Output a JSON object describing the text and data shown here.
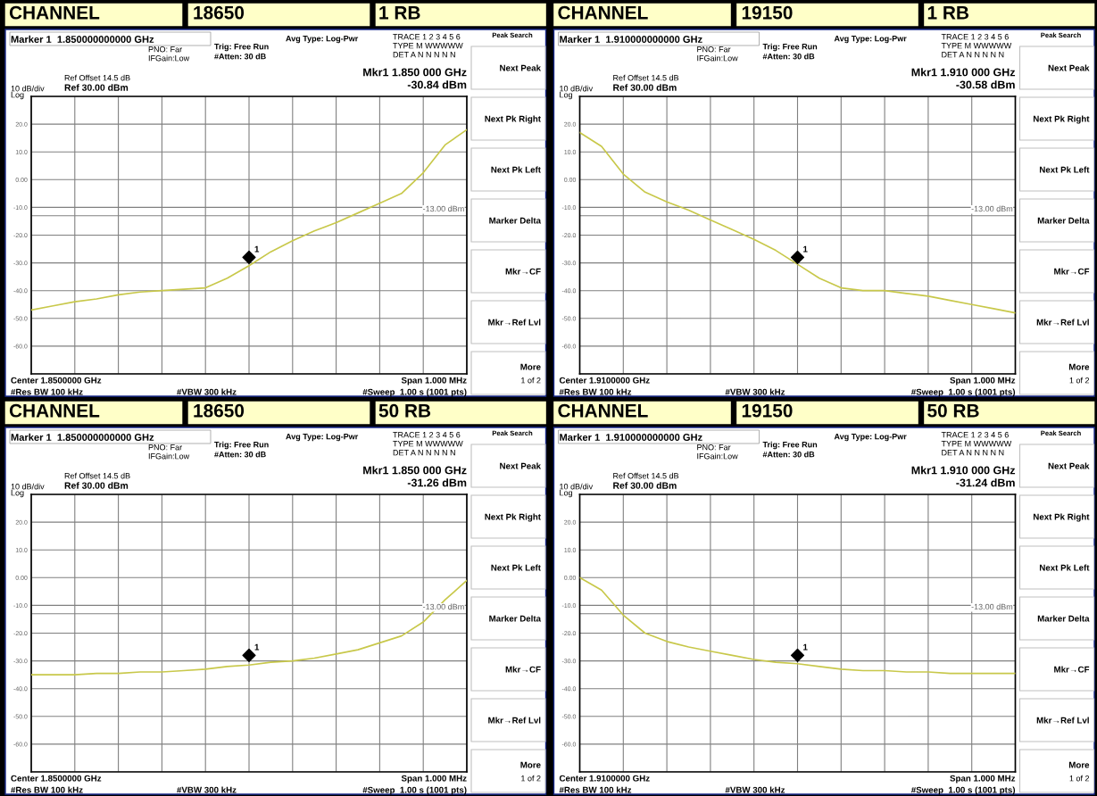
{
  "chart_data": [
    {
      "type": "line",
      "annotations": [
        "CHANNEL",
        "18650",
        "1 RB",
        "Marker 1  1.850000000000 GHz",
        "PNO: Far",
        "IFGain:Low",
        "Trig: Free Run",
        "#Atten: 30 dB",
        "Avg Type: Log-Pwr",
        "TRACE 1 2 3 4 5 6",
        "TYPE M WWWWW",
        "DET A N N N N N",
        "Ref Offset 14.5 dB",
        "Ref 30.00 dBm",
        "10 dB/div",
        "Log",
        "Mkr1 1.850 000 GHz",
        "-30.84 dBm",
        "Center 1.8500000 GHz",
        "#Res BW 100 kHz",
        "#VBW 300 kHz",
        "Span 1.000 MHz",
        "#Sweep  1.00 s (1001 pts)",
        "Peak Search",
        "Next Peak",
        "Next Pk Right",
        "Next Pk Left",
        "Marker Delta",
        "Mkr→CF",
        "Mkr→Ref Lvl",
        "More",
        "1 of 2",
        "1"
      ],
      "categories": [
        null,
        null,
        null,
        null,
        null,
        null,
        null,
        null,
        null,
        null,
        null,
        null,
        null,
        null,
        null,
        null,
        null,
        null,
        null,
        null,
        null
      ],
      "series": [
        {
          "color": "#c8c84a",
          "values": [
            -47,
            -45.5,
            -44,
            -43,
            -41.5,
            -40.5,
            -40,
            -39.5,
            -39,
            -35.5,
            -31,
            -26,
            -22,
            -18.5,
            -15.5,
            -12,
            -8.5,
            -5,
            2.5,
            12.5,
            18
          ]
        },
        {
          "type": "scatter",
          "color": "#000000",
          "marker": "diamond",
          "values": [
            null,
            null,
            null,
            null,
            null,
            null,
            null,
            null,
            null,
            null,
            -28,
            null,
            null,
            null,
            null,
            null,
            null,
            null,
            null,
            null,
            null
          ]
        }
      ],
      "ylim": [
        -70,
        30
      ],
      "yticks": [
        {
          "value": 30,
          "label": null
        },
        {
          "value": 20,
          "label": "20.0"
        },
        {
          "value": 10,
          "label": "10.0"
        },
        {
          "value": 0,
          "label": "0.00"
        },
        {
          "value": -10,
          "label": "-10.0"
        },
        {
          "value": -20,
          "label": "-20.0"
        },
        {
          "value": -30,
          "label": "-30.0"
        },
        {
          "value": -40,
          "label": "-40.0"
        },
        {
          "value": -50,
          "label": "-50.0"
        },
        {
          "value": -60,
          "label": "-60.0"
        },
        {
          "value": -70,
          "label": null
        }
      ],
      "ref_lines": [
        {
          "axis": "y",
          "value": -13,
          "label": "-13.00 dBm",
          "color": "#808080"
        }
      ],
      "grid": true,
      "tick_labels": "y"
    },
    {
      "type": "line",
      "annotations": [
        "CHANNEL",
        "19150",
        "1 RB",
        "Marker 1  1.910000000000 GHz",
        "PNO: Far",
        "IFGain:Low",
        "Trig: Free Run",
        "#Atten: 30 dB",
        "Avg Type: Log-Pwr",
        "TRACE 1 2 3 4 5 6",
        "TYPE M WWWWW",
        "DET A N N N N N",
        "Ref Offset 14.5 dB",
        "Ref 30.00 dBm",
        "10 dB/div",
        "Log",
        "Mkr1 1.910 000 GHz",
        "-30.58 dBm",
        "Center 1.9100000 GHz",
        "#Res BW 100 kHz",
        "#VBW 300 kHz",
        "Span 1.000 MHz",
        "#Sweep  1.00 s (1001 pts)",
        "Peak Search",
        "Next Peak",
        "Next Pk Right",
        "Next Pk Left",
        "Marker Delta",
        "Mkr→CF",
        "Mkr→Ref Lvl",
        "More",
        "1 of 2",
        "1"
      ],
      "categories": [
        null,
        null,
        null,
        null,
        null,
        null,
        null,
        null,
        null,
        null,
        null,
        null,
        null,
        null,
        null,
        null,
        null,
        null,
        null,
        null,
        null
      ],
      "series": [
        {
          "color": "#c8c84a",
          "values": [
            17,
            12,
            2,
            -4.5,
            -8,
            -11,
            -14.5,
            -18,
            -21.5,
            -25.5,
            -30.5,
            -35.5,
            -39,
            -40,
            -40,
            -41,
            -42,
            -43.5,
            -45,
            -46.5,
            -48
          ]
        },
        {
          "type": "scatter",
          "color": "#000000",
          "marker": "diamond",
          "values": [
            null,
            null,
            null,
            null,
            null,
            null,
            null,
            null,
            null,
            null,
            -28,
            null,
            null,
            null,
            null,
            null,
            null,
            null,
            null,
            null,
            null
          ]
        }
      ],
      "ylim": [
        -70,
        30
      ],
      "yticks": [
        {
          "value": 30,
          "label": null
        },
        {
          "value": 20,
          "label": "20.0"
        },
        {
          "value": 10,
          "label": "10.0"
        },
        {
          "value": 0,
          "label": "0.00"
        },
        {
          "value": -10,
          "label": "-10.0"
        },
        {
          "value": -20,
          "label": "-20.0"
        },
        {
          "value": -30,
          "label": "-30.0"
        },
        {
          "value": -40,
          "label": "-40.0"
        },
        {
          "value": -50,
          "label": "-50.0"
        },
        {
          "value": -60,
          "label": "-60.0"
        },
        {
          "value": -70,
          "label": null
        }
      ],
      "ref_lines": [
        {
          "axis": "y",
          "value": -13,
          "label": "-13.00 dBm",
          "color": "#808080"
        }
      ],
      "grid": true,
      "tick_labels": "y"
    },
    {
      "type": "line",
      "annotations": [
        "CHANNEL",
        "18650",
        "50 RB",
        "Marker 1  1.850000000000 GHz",
        "PNO: Far",
        "IFGain:Low",
        "Trig: Free Run",
        "#Atten: 30 dB",
        "Avg Type: Log-Pwr",
        "TRACE 1 2 3 4 5 6",
        "TYPE M WWWWW",
        "DET A N N N N N",
        "Ref Offset 14.5 dB",
        "Ref 30.00 dBm",
        "10 dB/div",
        "Log",
        "Mkr1 1.850 000 GHz",
        "-31.26 dBm",
        "Center 1.8500000 GHz",
        "#Res BW 100 kHz",
        "#VBW 300 kHz",
        "Span 1.000 MHz",
        "#Sweep  1.00 s (1001 pts)",
        "Peak Search",
        "Next Peak",
        "Next Pk Right",
        "Next Pk Left",
        "Marker Delta",
        "Mkr→CF",
        "Mkr→Ref Lvl",
        "More",
        "1 of 2",
        "1"
      ],
      "categories": [
        null,
        null,
        null,
        null,
        null,
        null,
        null,
        null,
        null,
        null,
        null,
        null,
        null,
        null,
        null,
        null,
        null,
        null,
        null,
        null,
        null
      ],
      "series": [
        {
          "color": "#c8c84a",
          "values": [
            -35,
            -35,
            -35,
            -34.5,
            -34.5,
            -34,
            -34,
            -33.5,
            -33,
            -32,
            -31.5,
            -30.5,
            -30,
            -29,
            -27.5,
            -26,
            -23.5,
            -21,
            -16,
            -8,
            -1
          ]
        },
        {
          "type": "scatter",
          "color": "#000000",
          "marker": "diamond",
          "values": [
            null,
            null,
            null,
            null,
            null,
            null,
            null,
            null,
            null,
            null,
            -28,
            null,
            null,
            null,
            null,
            null,
            null,
            null,
            null,
            null,
            null
          ]
        }
      ],
      "ylim": [
        -70,
        30
      ],
      "yticks": [
        {
          "value": 30,
          "label": null
        },
        {
          "value": 20,
          "label": "20.0"
        },
        {
          "value": 10,
          "label": "10.0"
        },
        {
          "value": 0,
          "label": "0.00"
        },
        {
          "value": -10,
          "label": "-10.0"
        },
        {
          "value": -20,
          "label": "-20.0"
        },
        {
          "value": -30,
          "label": "-30.0"
        },
        {
          "value": -40,
          "label": "-40.0"
        },
        {
          "value": -50,
          "label": "-50.0"
        },
        {
          "value": -60,
          "label": "-60.0"
        },
        {
          "value": -70,
          "label": null
        }
      ],
      "ref_lines": [
        {
          "axis": "y",
          "value": -13,
          "label": "-13.00 dBm",
          "color": "#808080"
        }
      ],
      "grid": true,
      "tick_labels": "y"
    },
    {
      "type": "line",
      "annotations": [
        "CHANNEL",
        "19150",
        "50 RB",
        "Marker 1  1.910000000000 GHz",
        "PNO: Far",
        "IFGain:Low",
        "Trig: Free Run",
        "#Atten: 30 dB",
        "Avg Type: Log-Pwr",
        "TRACE 1 2 3 4 5 6",
        "TYPE M WWWWW",
        "DET A N N N N N",
        "Ref Offset 14.5 dB",
        "Ref 30.00 dBm",
        "10 dB/div",
        "Log",
        "Mkr1 1.910 000 GHz",
        "-31.24 dBm",
        "Center 1.9100000 GHz",
        "#Res BW 100 kHz",
        "#VBW 300 kHz",
        "Span 1.000 MHz",
        "#Sweep  1.00 s (1001 pts)",
        "Peak Search",
        "Next Peak",
        "Next Pk Right",
        "Next Pk Left",
        "Marker Delta",
        "Mkr→CF",
        "Mkr→Ref Lvl",
        "More",
        "1 of 2",
        "1"
      ],
      "categories": [
        null,
        null,
        null,
        null,
        null,
        null,
        null,
        null,
        null,
        null,
        null,
        null,
        null,
        null,
        null,
        null,
        null,
        null,
        null,
        null,
        null
      ],
      "series": [
        {
          "color": "#c8c84a",
          "values": [
            0,
            -4.5,
            -13.5,
            -20,
            -23,
            -25,
            -26.5,
            -28,
            -29.5,
            -30.5,
            -31,
            -32,
            -33,
            -33.5,
            -33.5,
            -34,
            -34,
            -34.5,
            -34.5,
            -34.5,
            -34.5
          ]
        },
        {
          "type": "scatter",
          "color": "#000000",
          "marker": "diamond",
          "values": [
            null,
            null,
            null,
            null,
            null,
            null,
            null,
            null,
            null,
            null,
            -28,
            null,
            null,
            null,
            null,
            null,
            null,
            null,
            null,
            null,
            null
          ]
        }
      ],
      "ylim": [
        -70,
        30
      ],
      "yticks": [
        {
          "value": 30,
          "label": null
        },
        {
          "value": 20,
          "label": "20.0"
        },
        {
          "value": 10,
          "label": "10.0"
        },
        {
          "value": 0,
          "label": "0.00"
        },
        {
          "value": -10,
          "label": "-10.0"
        },
        {
          "value": -20,
          "label": "-20.0"
        },
        {
          "value": -30,
          "label": "-30.0"
        },
        {
          "value": -40,
          "label": "-40.0"
        },
        {
          "value": -50,
          "label": "-50.0"
        },
        {
          "value": -60,
          "label": "-60.0"
        },
        {
          "value": -70,
          "label": null
        }
      ],
      "ref_lines": [
        {
          "axis": "y",
          "value": -13,
          "label": "-13.00 dBm",
          "color": "#808080"
        }
      ],
      "grid": true,
      "tick_labels": "y"
    }
  ]
}
